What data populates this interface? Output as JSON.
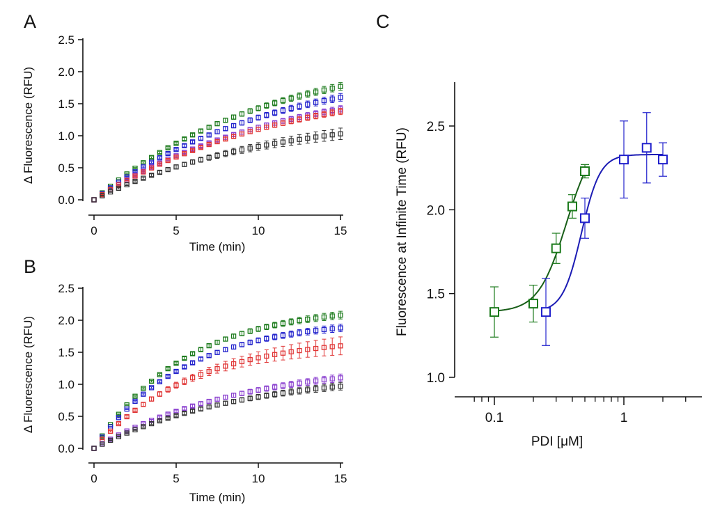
{
  "colors": {
    "green": "#1b7a1b",
    "blue": "#2020cc",
    "red": "#e03535",
    "black": "#333333",
    "purple": "#8a3fcf",
    "curve_green": "#185e18",
    "curve_blue": "#1c1cb4"
  },
  "chart_data": [
    {
      "panel": "A",
      "type": "scatter",
      "panel_label": "A",
      "xlabel": "Time (min)",
      "ylabel": "Δ Fluorescence (RFU)",
      "xlim": [
        0,
        15
      ],
      "ylim": [
        0,
        2.5
      ],
      "xticks": [
        "0",
        "5",
        "10",
        "15"
      ],
      "xtick_values": [
        0,
        5,
        10,
        15
      ],
      "yticks": [
        "0.0",
        "0.5",
        "1.0",
        "1.5",
        "2.0",
        "2.5"
      ],
      "ytick_values": [
        0,
        0.5,
        1,
        1.5,
        2,
        2.5
      ],
      "series": [
        {
          "name": "green",
          "color": "green",
          "final": 1.77,
          "tau": 10.5,
          "err": 0.06
        },
        {
          "name": "blue",
          "color": "blue",
          "final": 1.6,
          "tau": 11.0,
          "err": 0.06
        },
        {
          "name": "purple",
          "color": "purple",
          "final": 1.42,
          "tau": 11.5,
          "err": 0.05
        },
        {
          "name": "red",
          "color": "red",
          "final": 1.38,
          "tau": 11.5,
          "err": 0.05
        },
        {
          "name": "black",
          "color": "black",
          "final": 1.03,
          "tau": 10.5,
          "err": 0.09
        }
      ]
    },
    {
      "panel": "B",
      "type": "scatter",
      "panel_label": "B",
      "xlabel": "Time (min)",
      "ylabel": "Δ Fluorescence (RFU)",
      "xlim": [
        0,
        15
      ],
      "ylim": [
        0,
        2.5
      ],
      "xticks": [
        "0",
        "5",
        "10",
        "15"
      ],
      "xtick_values": [
        0,
        5,
        10,
        15
      ],
      "yticks": [
        "0.0",
        "0.5",
        "1.0",
        "1.5",
        "2.0",
        "2.5"
      ],
      "ytick_values": [
        0,
        0.5,
        1,
        1.5,
        2,
        2.5
      ],
      "series": [
        {
          "name": "green",
          "color": "green",
          "final": 2.08,
          "tau": 5.5,
          "err": 0.06
        },
        {
          "name": "blue",
          "color": "blue",
          "final": 1.88,
          "tau": 5.5,
          "err": 0.06
        },
        {
          "name": "red",
          "color": "red",
          "final": 1.6,
          "tau": 6.0,
          "err": 0.14
        },
        {
          "name": "purple",
          "color": "purple",
          "final": 1.1,
          "tau": 9.0,
          "err": 0.06
        },
        {
          "name": "black",
          "color": "black",
          "final": 0.97,
          "tau": 9.0,
          "err": 0.06
        }
      ]
    },
    {
      "panel": "C",
      "type": "scatter",
      "panel_label": "C",
      "xlabel": "PDI [μM]",
      "ylabel": "Fluorescence at Infinite Time (RFU)",
      "xscale": "log",
      "xlim": [
        0.07,
        3.5
      ],
      "ylim": [
        0.95,
        2.75
      ],
      "xticks": [
        "0.1",
        "1"
      ],
      "xtick_values": [
        0.1,
        1
      ],
      "yticks": [
        "1.0",
        "1.5",
        "2.0",
        "2.5"
      ],
      "ytick_values": [
        1.0,
        1.5,
        2.0,
        2.5
      ],
      "series": [
        {
          "name": "green",
          "color": "green",
          "curve_color": "curve_green",
          "x": [
            0.1,
            0.2,
            0.3,
            0.4,
            0.5
          ],
          "y": [
            1.39,
            1.44,
            1.77,
            2.02,
            2.23
          ],
          "err": [
            0.15,
            0.11,
            0.09,
            0.07,
            0.04
          ],
          "fit": {
            "bottom": 1.39,
            "top": 2.45,
            "ec50": 0.36,
            "hill": 4.0,
            "xmin": 0.1,
            "xmax": 0.5
          }
        },
        {
          "name": "blue",
          "color": "blue",
          "curve_color": "curve_blue",
          "x": [
            0.25,
            0.5,
            1.0,
            1.5,
            2.0
          ],
          "y": [
            1.39,
            1.95,
            2.3,
            2.37,
            2.3
          ],
          "err": [
            0.2,
            0.12,
            0.23,
            0.21,
            0.1
          ],
          "fit": {
            "bottom": 1.39,
            "top": 2.33,
            "ec50": 0.47,
            "hill": 6.0,
            "xmin": 0.25,
            "xmax": 2.0
          }
        }
      ]
    }
  ]
}
